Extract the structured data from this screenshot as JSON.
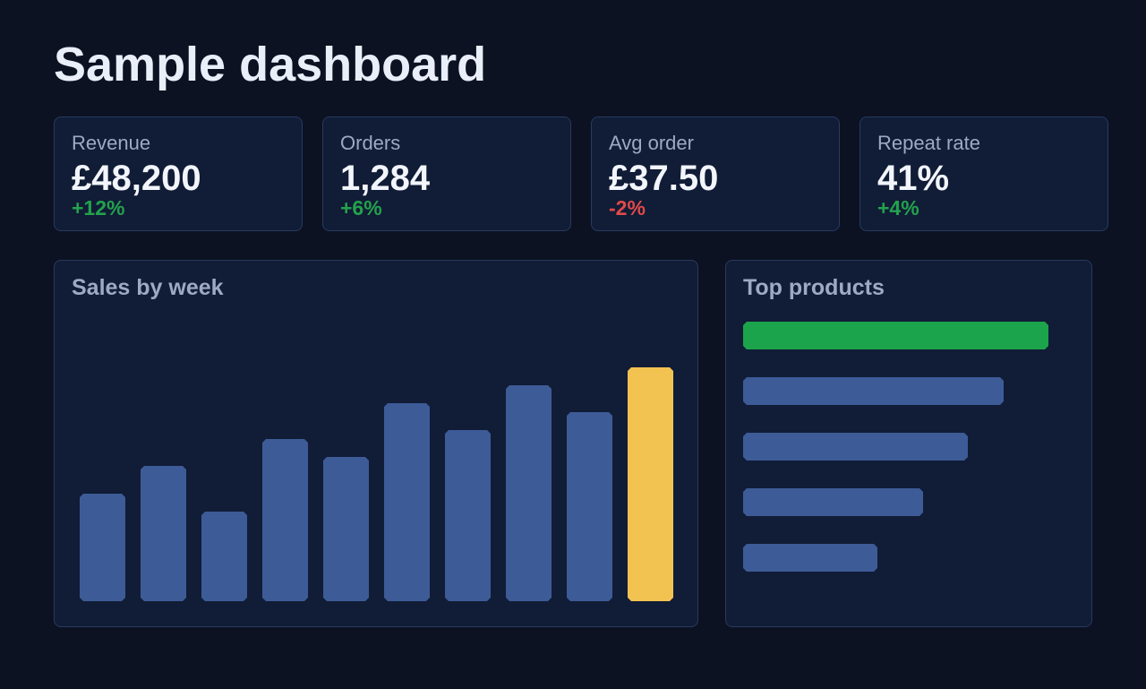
{
  "header": {
    "title": "Sample dashboard"
  },
  "kpis": [
    {
      "label": "Revenue",
      "value": "£48,200",
      "delta": "+12%",
      "trend": "up"
    },
    {
      "label": "Orders",
      "value": "1,284",
      "delta": "+6%",
      "trend": "up"
    },
    {
      "label": "Avg order",
      "value": "£37.50",
      "delta": "-2%",
      "trend": "down"
    },
    {
      "label": "Repeat rate",
      "value": "41%",
      "delta": "+4%",
      "trend": "up"
    }
  ],
  "colors": {
    "positive": "#22a24c",
    "negative": "#e04a4a",
    "bar": "#3d5b97",
    "highlight": "#f2c351",
    "top_product": "#1ca44c"
  },
  "sales_panel": {
    "title": "Sales by week"
  },
  "products_panel": {
    "title": "Top products"
  },
  "chart_data": [
    {
      "type": "bar",
      "title": "Sales by week",
      "values": [
        120,
        150,
        100,
        180,
        160,
        220,
        190,
        240,
        210,
        260
      ],
      "highlight_index": 9,
      "ylim": [
        0,
        260
      ],
      "grid": false,
      "axes": false
    },
    {
      "type": "bar",
      "orientation": "horizontal",
      "title": "Top products",
      "values": [
        340,
        290,
        250,
        200,
        150
      ],
      "highlight_index": 0,
      "xlim": [
        0,
        340
      ],
      "grid": false,
      "axes": false
    }
  ]
}
